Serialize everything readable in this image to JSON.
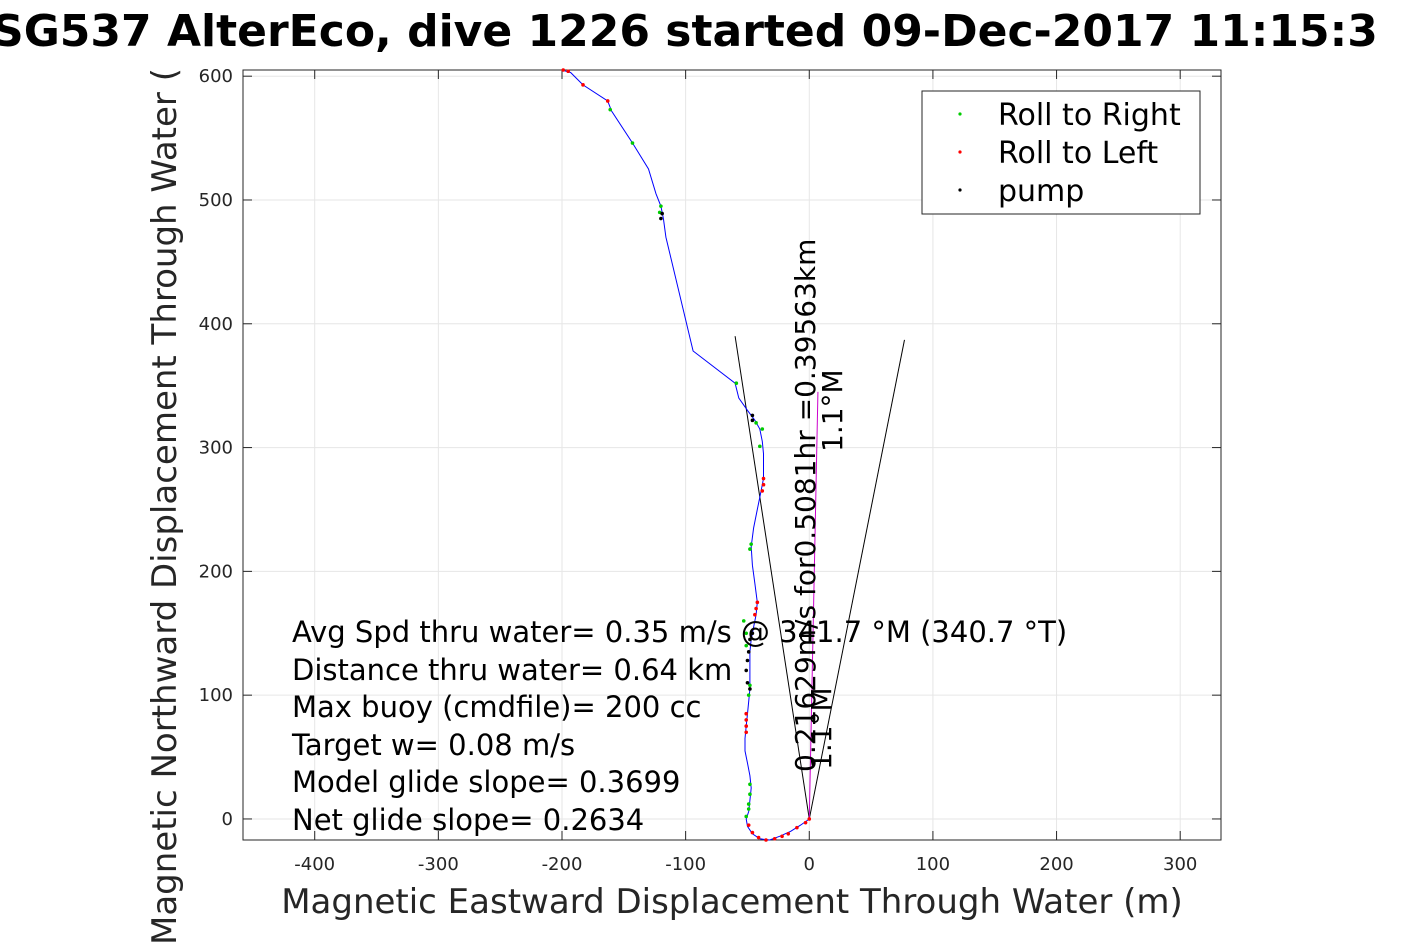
{
  "chart_data": {
    "type": "scatter",
    "title": "SG537 AlterEco, dive 1226 started 09-Dec-2017 11:15:3",
    "xlabel": "Magnetic Eastward Displacement Through Water (m)",
    "ylabel": "Magnetic Northward Displacement Through Water (",
    "xlim": [
      -458,
      333
    ],
    "ylim": [
      -17,
      605
    ],
    "xticks": [
      -400,
      -300,
      -200,
      -100,
      0,
      100,
      200,
      300
    ],
    "yticks": [
      0,
      100,
      200,
      300,
      400,
      500,
      600
    ],
    "xtick_labels": [
      "-400",
      "-300",
      "-200",
      "-100",
      "0",
      "100",
      "200",
      "300"
    ],
    "ytick_labels": [
      "0",
      "100",
      "200",
      "300",
      "400",
      "500",
      "600"
    ],
    "grid": true,
    "legend_position": "top-right",
    "track": [
      [
        0,
        0
      ],
      [
        -7,
        -5
      ],
      [
        -15,
        -10
      ],
      [
        -24,
        -14
      ],
      [
        -32,
        -17
      ],
      [
        -40,
        -16
      ],
      [
        -46,
        -12
      ],
      [
        -50,
        -6
      ],
      [
        -51,
        0
      ],
      [
        -49,
        6
      ],
      [
        -48,
        15
      ],
      [
        -47,
        25
      ],
      [
        -48,
        35
      ],
      [
        -50,
        45
      ],
      [
        -52,
        55
      ],
      [
        -52,
        65
      ],
      [
        -51,
        75
      ],
      [
        -50,
        85
      ],
      [
        -49,
        95
      ],
      [
        -48,
        105
      ],
      [
        -48,
        115
      ],
      [
        -48,
        125
      ],
      [
        -48,
        135
      ],
      [
        -47,
        145
      ],
      [
        -45,
        155
      ],
      [
        -43,
        165
      ],
      [
        -42,
        175
      ],
      [
        -44,
        190
      ],
      [
        -46,
        205
      ],
      [
        -47,
        220
      ],
      [
        -45,
        235
      ],
      [
        -42,
        250
      ],
      [
        -39,
        265
      ],
      [
        -37,
        275
      ],
      [
        -37,
        285
      ],
      [
        -37,
        295
      ],
      [
        -38,
        305
      ],
      [
        -40,
        315
      ],
      [
        -44,
        322
      ],
      [
        -50,
        330
      ],
      [
        -57,
        340
      ],
      [
        -60,
        352
      ],
      [
        -94,
        378
      ],
      [
        -116,
        470
      ],
      [
        -118,
        485
      ],
      [
        -120,
        495
      ],
      [
        -124,
        505
      ],
      [
        -130,
        525
      ],
      [
        -143,
        546
      ],
      [
        -160,
        572
      ],
      [
        -163,
        580
      ],
      [
        -183,
        593
      ],
      [
        -193,
        603
      ],
      [
        -197,
        604
      ],
      [
        -200,
        605
      ]
    ],
    "series": [
      {
        "name": "Roll to Right",
        "color": "#00cc00",
        "points": [
          [
            -48,
            28
          ],
          [
            -48,
            20
          ],
          [
            -49,
            12
          ],
          [
            -49,
            8
          ],
          [
            -51,
            2
          ],
          [
            -48,
            108
          ],
          [
            -49,
            100
          ],
          [
            -51,
            140
          ],
          [
            -51,
            150
          ],
          [
            -53,
            160
          ],
          [
            -47,
            222
          ],
          [
            -48,
            218
          ],
          [
            -40,
            301
          ],
          [
            -38,
            315
          ],
          [
            -43,
            320
          ],
          [
            -59,
            352
          ],
          [
            -120,
            495
          ],
          [
            -121,
            490
          ],
          [
            -143,
            546
          ],
          [
            -161,
            573
          ]
        ]
      },
      {
        "name": "Roll to Left",
        "color": "#ff0000",
        "points": [
          [
            0,
            0
          ],
          [
            -3,
            -3
          ],
          [
            -10,
            -7
          ],
          [
            -17,
            -12
          ],
          [
            -22,
            -14
          ],
          [
            -28,
            -16
          ],
          [
            -35,
            -17
          ],
          [
            -41,
            -15
          ],
          [
            -46,
            -11
          ],
          [
            -49,
            -5
          ],
          [
            -51,
            70
          ],
          [
            -51,
            75
          ],
          [
            -51,
            80
          ],
          [
            -51,
            85
          ],
          [
            -44,
            165
          ],
          [
            -43,
            170
          ],
          [
            -42,
            175
          ],
          [
            -38,
            265
          ],
          [
            -37,
            270
          ],
          [
            -37,
            275
          ],
          [
            -163,
            580
          ],
          [
            -183,
            593
          ],
          [
            -195,
            604
          ],
          [
            -199,
            605
          ]
        ]
      },
      {
        "name": "pump",
        "color": "#000000",
        "points": [
          [
            -48,
            105
          ],
          [
            -50,
            110
          ],
          [
            -51,
            120
          ],
          [
            -50,
            128
          ],
          [
            -49,
            135
          ],
          [
            -48,
            145
          ],
          [
            -46,
            150
          ],
          [
            -46,
            322
          ],
          [
            -46,
            326
          ],
          [
            -120,
            485
          ],
          [
            -119,
            489
          ]
        ]
      }
    ],
    "cone_lines": [
      {
        "x": [
          0,
          -60
        ],
        "y": [
          0,
          390
        ]
      },
      {
        "x": [
          0,
          77
        ],
        "y": [
          0,
          387
        ]
      }
    ],
    "annotations": [
      "Avg Spd thru water=  0.35 m/s @ 341.7 °M (340.7 °T)",
      "Distance thru water=  0.64 km",
      "Max buoy (cmdfile)= 200 cc",
      "Target w= 0.08 m/s",
      "Model glide slope= 0.3699",
      "Net glide slope= 0.2634"
    ],
    "rotated_labels": {
      "current": "0.21629m/s for0.5081hr =0.39563km",
      "heading_upper": "1.1°M",
      "heading_lower": "1.1°M"
    }
  }
}
